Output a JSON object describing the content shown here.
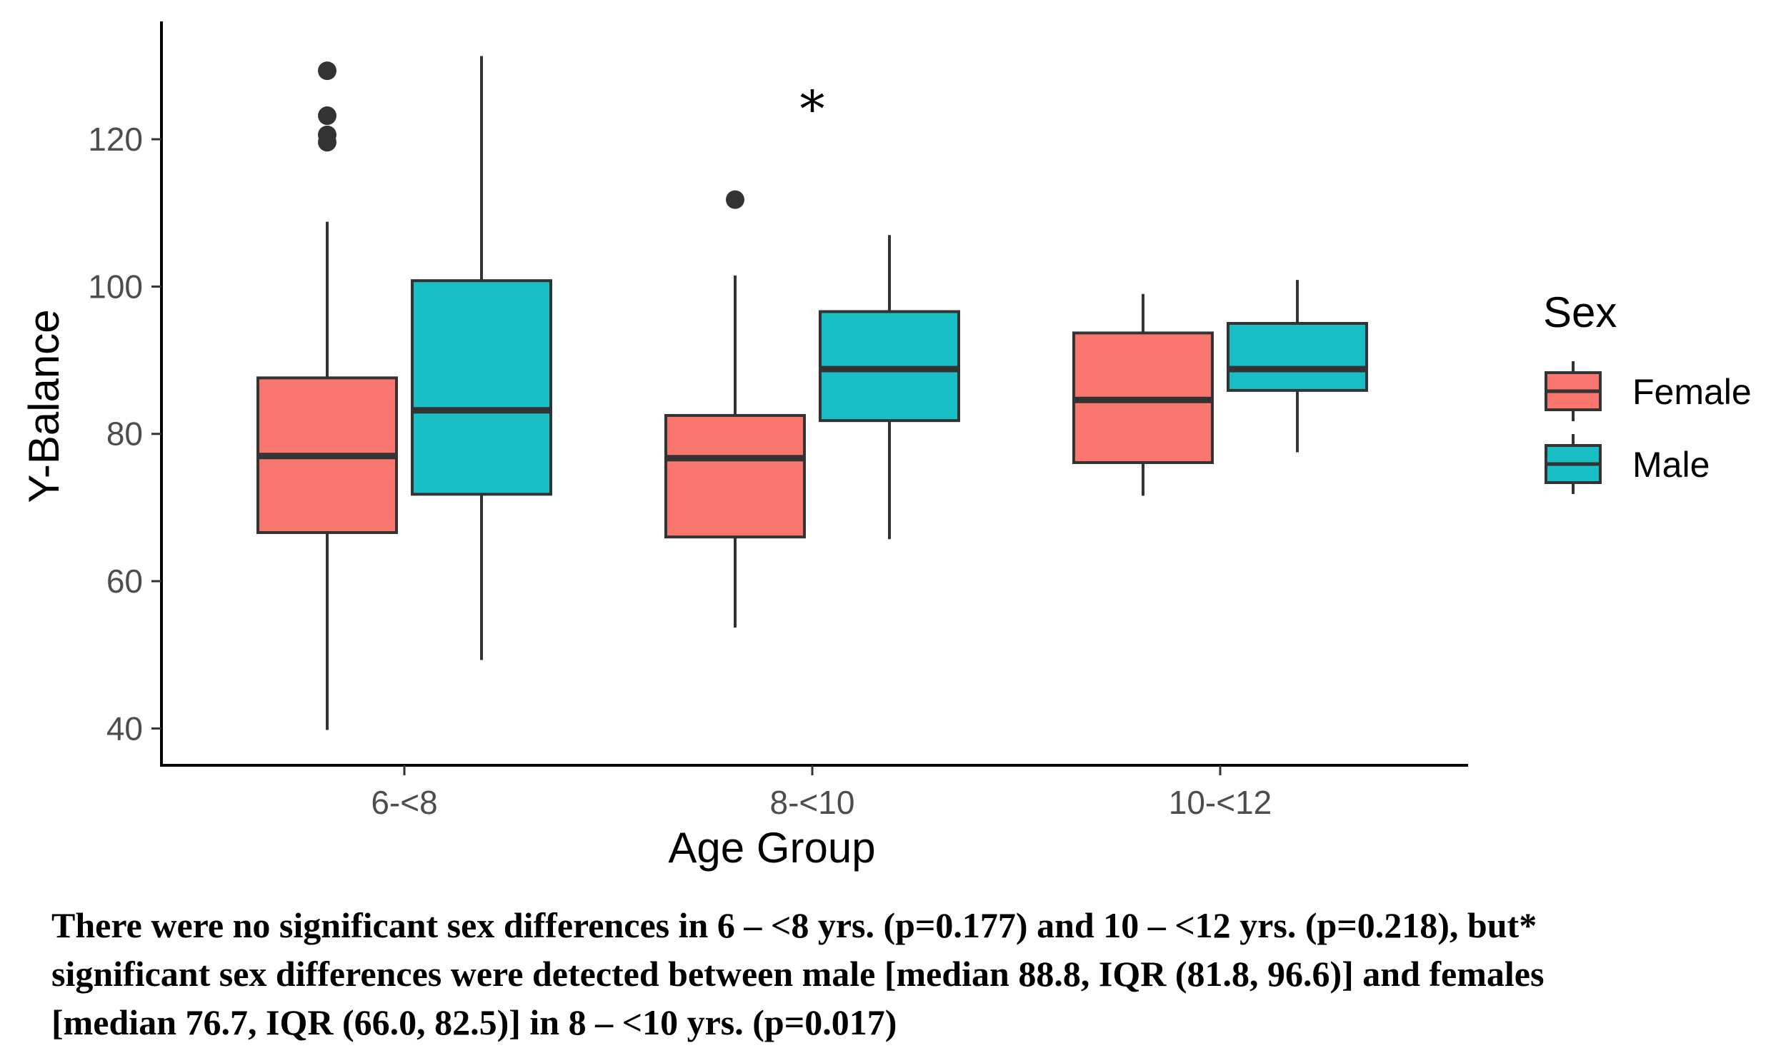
{
  "chart_data": {
    "type": "boxplot",
    "xlabel": "Age Group",
    "ylabel": "Y-Balance",
    "ylim": [
      35,
      136
    ],
    "yticks": [
      40,
      60,
      80,
      100,
      120
    ],
    "categories": [
      "6-<8",
      "8-<10",
      "10-<12"
    ],
    "legend": {
      "title": "Sex",
      "position": "right",
      "entries": [
        {
          "name": "Female",
          "color": "#F8766D"
        },
        {
          "name": "Male",
          "color": "#19BFC4"
        }
      ]
    },
    "series": [
      {
        "name": "Female",
        "color": "#F8766D",
        "boxes": [
          {
            "category": "6-<8",
            "whisker_low": 39.8,
            "q1": 66.6,
            "median": 77.0,
            "q3": 87.6,
            "whisker_high": 108.8,
            "outliers": [
              129.3,
              123.2,
              120.6,
              119.6
            ]
          },
          {
            "category": "8-<10",
            "whisker_low": 53.7,
            "q1": 66.0,
            "median": 76.7,
            "q3": 82.5,
            "whisker_high": 101.5,
            "outliers": [
              111.8
            ]
          },
          {
            "category": "10-<12",
            "whisker_low": 71.6,
            "q1": 76.1,
            "median": 84.6,
            "q3": 93.7,
            "whisker_high": 99.0,
            "outliers": []
          }
        ]
      },
      {
        "name": "Male",
        "color": "#19BFC4",
        "boxes": [
          {
            "category": "6-<8",
            "whisker_low": 49.3,
            "q1": 71.8,
            "median": 83.2,
            "q3": 100.8,
            "whisker_high": 131.3,
            "outliers": []
          },
          {
            "category": "8-<10",
            "whisker_low": 65.7,
            "q1": 81.8,
            "median": 88.8,
            "q3": 96.6,
            "whisker_high": 107.0,
            "outliers": []
          },
          {
            "category": "10-<12",
            "whisker_low": 77.5,
            "q1": 85.9,
            "median": 88.8,
            "q3": 95.0,
            "whisker_high": 100.9,
            "outliers": []
          }
        ]
      }
    ],
    "annotations": [
      {
        "text": "*",
        "category": "8-<10",
        "y": 126
      }
    ]
  },
  "caption": {
    "line1": "There were no significant sex differences in 6 – <8 yrs. (p=0.177) and 10 – <12 yrs. (p=0.218), but*",
    "line2": "significant sex differences were detected between male [median 88.8, IQR (81.8, 96.6)] and females",
    "line3": "[median 76.7, IQR (66.0, 82.5)] in 8 – <10 yrs. (p=0.017)"
  }
}
